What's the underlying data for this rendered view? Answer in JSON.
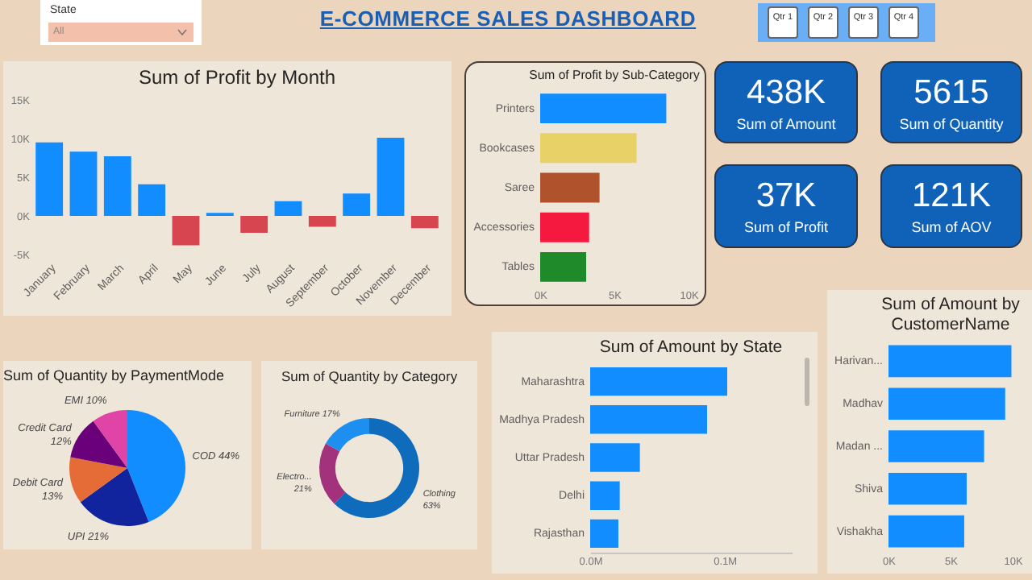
{
  "chart_data": [
    {
      "type": "other",
      "title": "E-COMMERCE SALES DASHBOARD",
      "annotations": [
        "State",
        "All",
        "Qtr 1",
        "Qtr 2",
        "Qtr 3",
        "Qtr 4"
      ]
    },
    {
      "type": "bar",
      "title": "Sum of Profit by Month",
      "categories": [
        "January",
        "February",
        "March",
        "April",
        "May",
        "June",
        "July",
        "August",
        "September",
        "October",
        "November",
        "December"
      ],
      "values": [
        9500,
        8300,
        7700,
        4100,
        -3800,
        400,
        -2200,
        1900,
        -1400,
        2900,
        10100,
        -1600
      ],
      "colors": [
        "#118dff",
        "#118dff",
        "#118dff",
        "#118dff",
        "#d64550",
        "#118dff",
        "#d64550",
        "#118dff",
        "#d64550",
        "#118dff",
        "#118dff",
        "#d64550"
      ],
      "ylim": [
        -5000,
        15000
      ],
      "yticks": [
        {
          "value": -5000,
          "label": "-5K"
        },
        {
          "value": 0,
          "label": "0K"
        },
        {
          "value": 5000,
          "label": "5K"
        },
        {
          "value": 10000,
          "label": "10K"
        },
        {
          "value": 15000,
          "label": "15K"
        }
      ]
    },
    {
      "type": "bar",
      "orientation": "horizontal",
      "title": "Sum of Profit by Sub-Category",
      "categories": [
        "Printers",
        "Bookcases",
        "Saree",
        "Accessories",
        "Tables"
      ],
      "values": [
        8500,
        6500,
        4000,
        3300,
        3100
      ],
      "colors": [
        "#118dff",
        "#e8d166",
        "#b0532c",
        "#f5193f",
        "#1f8a2a"
      ],
      "xlim": [
        0,
        10000
      ],
      "xticks": [
        {
          "value": 0,
          "label": "0K"
        },
        {
          "value": 5000,
          "label": "5K"
        },
        {
          "value": 10000,
          "label": "10K"
        }
      ]
    },
    {
      "type": "other",
      "annotations": [
        "438K",
        "Sum of Amount"
      ]
    },
    {
      "type": "other",
      "annotations": [
        "5615",
        "Sum of Quantity"
      ]
    },
    {
      "type": "other",
      "annotations": [
        "37K",
        "Sum of Profit"
      ]
    },
    {
      "type": "other",
      "annotations": [
        "121K",
        "Sum of AOV"
      ]
    },
    {
      "type": "pie",
      "title": "Sum of Quantity by PaymentMode",
      "categories": [
        "COD",
        "UPI",
        "Debit Card",
        "Credit Card",
        "EMI"
      ],
      "values": [
        44,
        21,
        13,
        12,
        10
      ],
      "value_labels": [
        "44%",
        "21%",
        "13%",
        "12%",
        "10%"
      ],
      "colors": [
        "#118dff",
        "#12239e",
        "#e66c37",
        "#6b007b",
        "#e044a7"
      ]
    },
    {
      "type": "donut",
      "title": "Sum of Quantity by Category",
      "categories": [
        "Clothing",
        "Electro...",
        "Furniture"
      ],
      "values": [
        63,
        21,
        17
      ],
      "value_labels": [
        "63%",
        "21%",
        "17%"
      ],
      "colors": [
        "#0f6cbd",
        "#a2327b",
        "#1d8ff0"
      ]
    },
    {
      "type": "bar",
      "orientation": "horizontal",
      "title": "Sum of Amount by State",
      "categories": [
        "Maharashtra",
        "Madhya Pradesh",
        "Uttar Pradesh",
        "Delhi",
        "Rajasthan"
      ],
      "values": [
        102000,
        87000,
        37000,
        22000,
        21000
      ],
      "color": "#118dff",
      "xlim": [
        0,
        150000
      ],
      "xticks": [
        {
          "value": 0,
          "label": "0.0M"
        },
        {
          "value": 100000,
          "label": "0.1M"
        }
      ]
    },
    {
      "type": "bar",
      "orientation": "horizontal",
      "title": "Sum of Amount by CustomerName",
      "categories": [
        "Harivan...",
        "Madhav",
        "Madan ...",
        "Shiva",
        "Vishakha"
      ],
      "values": [
        9900,
        9400,
        7700,
        6300,
        6100
      ],
      "color": "#118dff",
      "xlim": [
        0,
        10000
      ],
      "xticks": [
        {
          "value": 0,
          "label": "0K"
        },
        {
          "value": 5000,
          "label": "5K"
        },
        {
          "value": 10000,
          "label": "10K"
        }
      ]
    }
  ]
}
